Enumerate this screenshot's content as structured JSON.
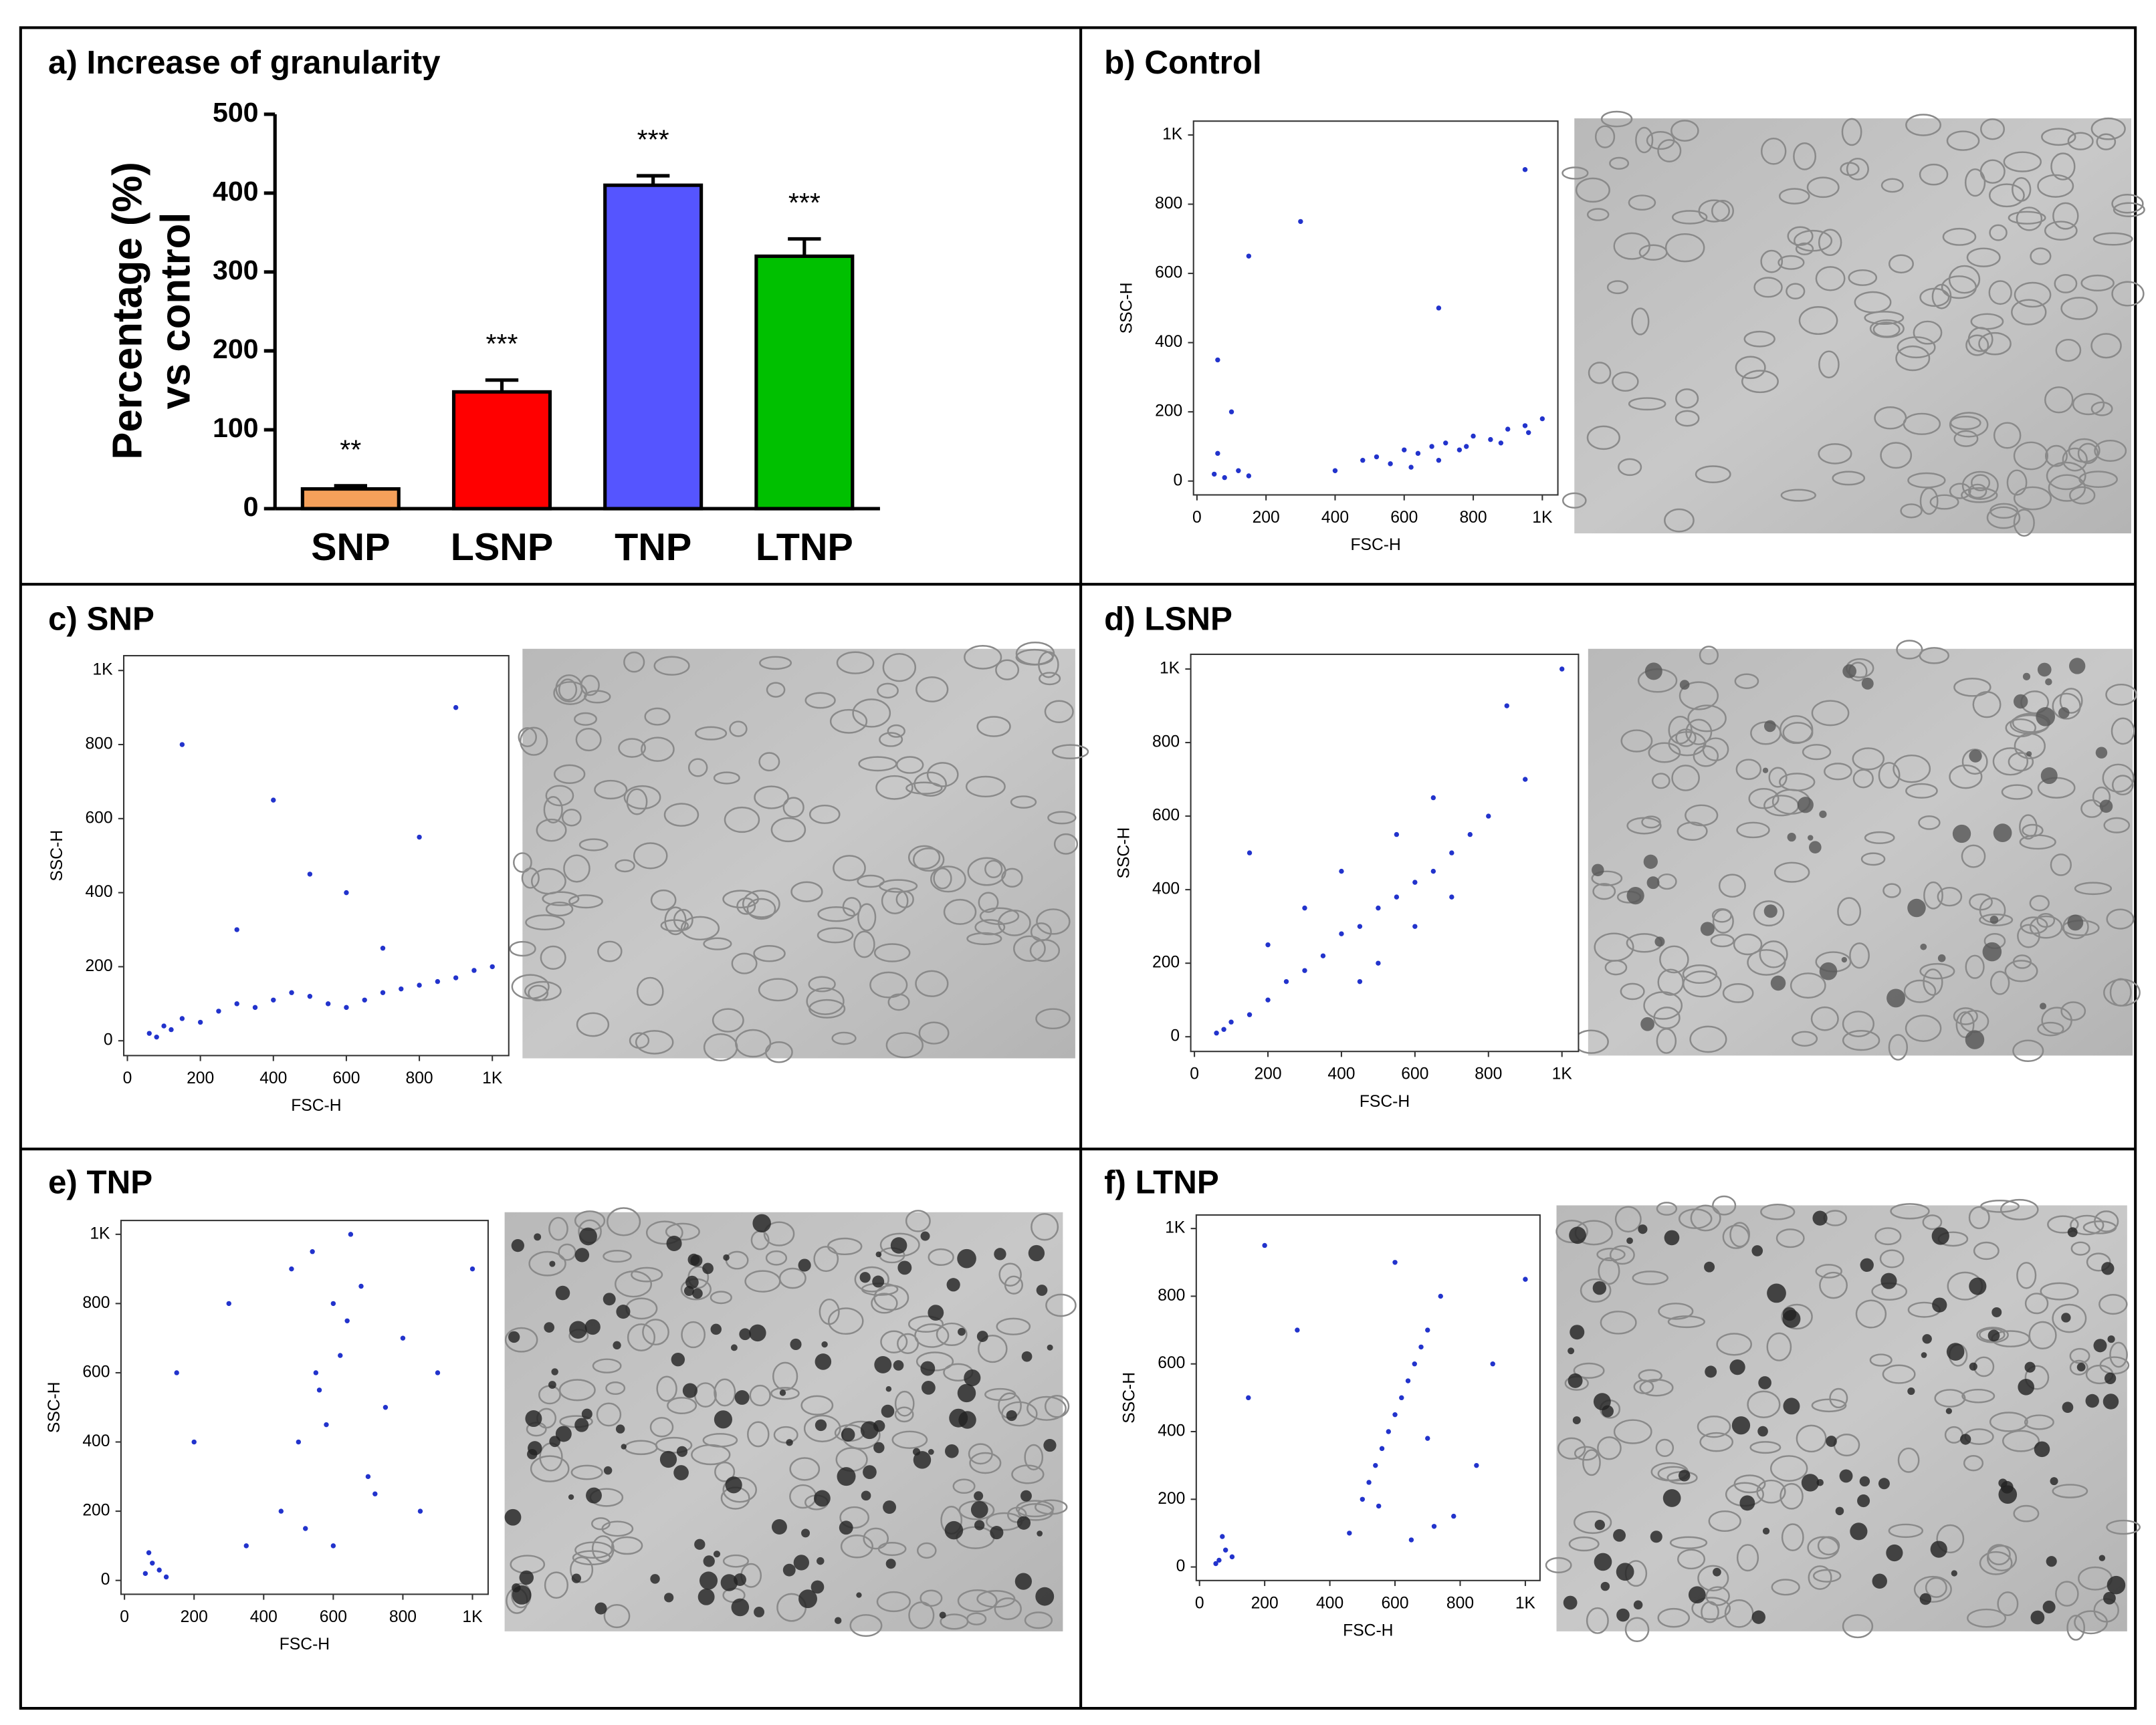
{
  "chart_data": [
    {
      "type": "bar",
      "title": "a) Increase of granularity",
      "ylabel": [
        "Percentage (%)",
        "vs control"
      ],
      "categories": [
        "SNP",
        "LSNP",
        "TNP",
        "LTNP"
      ],
      "values": [
        25,
        148,
        410,
        320
      ],
      "errors": [
        4,
        15,
        12,
        22
      ],
      "annotations": [
        "**",
        "***",
        "***",
        "***"
      ],
      "colors": [
        "#f5a05a",
        "#ff0000",
        "#5555ff",
        "#00c000"
      ],
      "ylim": [
        0,
        500
      ],
      "yticks": [
        0,
        100,
        200,
        300,
        400,
        500
      ]
    },
    {
      "type": "scatter",
      "title": "b) Control",
      "xlabel": "FSC-H",
      "ylabel": "SSC-H",
      "color": "#2233cc",
      "x": [
        50,
        80,
        120,
        150,
        60,
        100,
        480,
        520,
        560,
        600,
        640,
        680,
        720,
        760,
        800,
        850,
        900,
        950,
        1000,
        620,
        700,
        780,
        880,
        960,
        300,
        150,
        700,
        60,
        950,
        400
      ],
      "y": [
        20,
        10,
        30,
        15,
        80,
        200,
        60,
        70,
        50,
        90,
        80,
        100,
        110,
        90,
        130,
        120,
        150,
        160,
        180,
        40,
        60,
        100,
        110,
        140,
        750,
        650,
        500,
        350,
        900,
        30
      ],
      "xlim": [
        -10,
        1045
      ],
      "ylim": [
        -40,
        1040
      ],
      "xticks": [
        0,
        200,
        400,
        600,
        800,
        {
          "value": 1000,
          "label": "1K"
        }
      ],
      "yticks": [
        0,
        200,
        400,
        600,
        800,
        {
          "value": 1000,
          "label": "1K"
        }
      ]
    },
    {
      "type": "scatter",
      "title": "c) SNP",
      "xlabel": "FSC-H",
      "ylabel": "SSC-H",
      "color": "#2233cc",
      "x": [
        60,
        80,
        100,
        120,
        150,
        200,
        250,
        300,
        350,
        400,
        450,
        500,
        550,
        600,
        650,
        700,
        750,
        800,
        850,
        900,
        950,
        1000,
        300,
        500,
        700,
        150,
        800,
        400,
        600,
        900
      ],
      "y": [
        20,
        10,
        40,
        30,
        60,
        50,
        80,
        100,
        90,
        110,
        130,
        120,
        100,
        90,
        110,
        130,
        140,
        150,
        160,
        170,
        190,
        200,
        300,
        450,
        250,
        800,
        550,
        650,
        400,
        900
      ],
      "xlim": [
        -10,
        1045
      ],
      "ylim": [
        -40,
        1040
      ],
      "xticks": [
        0,
        200,
        400,
        600,
        800,
        {
          "value": 1000,
          "label": "1K"
        }
      ],
      "yticks": [
        0,
        200,
        400,
        600,
        800,
        {
          "value": 1000,
          "label": "1K"
        }
      ]
    },
    {
      "type": "scatter",
      "title": "d) LSNP",
      "xlabel": "FSC-H",
      "ylabel": "SSC-H",
      "color": "#2233cc",
      "x": [
        60,
        80,
        100,
        150,
        200,
        250,
        300,
        350,
        400,
        450,
        500,
        550,
        600,
        650,
        700,
        750,
        800,
        500,
        600,
        700,
        400,
        300,
        200,
        900,
        850,
        550,
        650,
        450,
        1000,
        150
      ],
      "y": [
        10,
        20,
        40,
        60,
        100,
        150,
        180,
        220,
        280,
        300,
        350,
        380,
        420,
        450,
        500,
        550,
        600,
        200,
        300,
        380,
        450,
        350,
        250,
        700,
        900,
        550,
        650,
        150,
        1000,
        500
      ],
      "xlim": [
        -10,
        1045
      ],
      "ylim": [
        -40,
        1040
      ],
      "xticks": [
        0,
        200,
        400,
        600,
        800,
        {
          "value": 1000,
          "label": "1K"
        }
      ],
      "yticks": [
        0,
        200,
        400,
        600,
        800,
        {
          "value": 1000,
          "label": "1K"
        }
      ]
    },
    {
      "type": "scatter",
      "title": "e) TNP",
      "xlabel": "FSC-H",
      "ylabel": "SSC-H",
      "color": "#2233cc",
      "x": [
        60,
        80,
        100,
        70,
        120,
        450,
        500,
        550,
        600,
        650,
        700,
        750,
        800,
        480,
        520,
        580,
        620,
        680,
        720,
        560,
        640,
        200,
        300,
        900,
        1000,
        850,
        150,
        350,
        600,
        540
      ],
      "y": [
        20,
        50,
        30,
        80,
        10,
        200,
        400,
        600,
        800,
        1000,
        300,
        500,
        700,
        900,
        150,
        450,
        650,
        850,
        250,
        550,
        750,
        400,
        800,
        600,
        900,
        200,
        600,
        100,
        100,
        950
      ],
      "xlim": [
        -10,
        1045
      ],
      "ylim": [
        -40,
        1040
      ],
      "xticks": [
        0,
        200,
        400,
        600,
        800,
        {
          "value": 1000,
          "label": "1K"
        }
      ],
      "yticks": [
        0,
        200,
        400,
        600,
        800,
        {
          "value": 1000,
          "label": "1K"
        }
      ]
    },
    {
      "type": "scatter",
      "title": "f) LTNP",
      "xlabel": "FSC-H",
      "ylabel": "SSC-H",
      "color": "#2233cc",
      "x": [
        60,
        80,
        100,
        70,
        50,
        460,
        500,
        540,
        580,
        620,
        660,
        700,
        740,
        780,
        520,
        560,
        600,
        640,
        680,
        720,
        600,
        650,
        150,
        300,
        900,
        1000,
        850,
        200,
        550,
        700
      ],
      "y": [
        20,
        50,
        30,
        90,
        10,
        100,
        200,
        300,
        400,
        500,
        600,
        700,
        800,
        150,
        250,
        350,
        450,
        550,
        650,
        120,
        900,
        80,
        500,
        700,
        600,
        850,
        300,
        950,
        180,
        380
      ],
      "xlim": [
        -10,
        1045
      ],
      "ylim": [
        -40,
        1040
      ],
      "xticks": [
        0,
        200,
        400,
        600,
        800,
        {
          "value": 1000,
          "label": "1K"
        }
      ],
      "yticks": [
        0,
        200,
        400,
        600,
        800,
        {
          "value": 1000,
          "label": "1K"
        }
      ]
    }
  ]
}
